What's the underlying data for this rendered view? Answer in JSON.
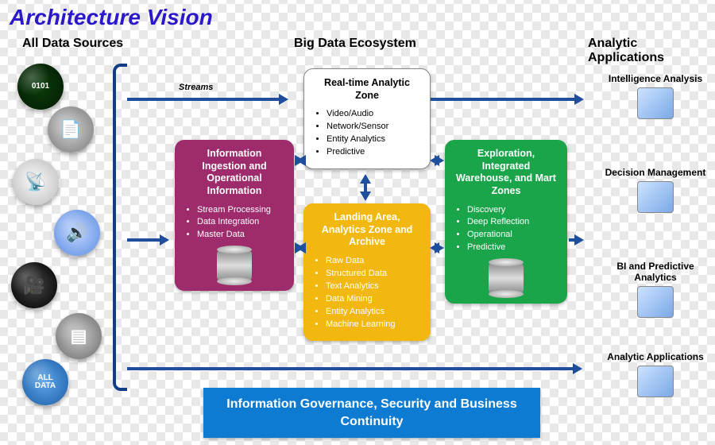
{
  "title": "Architecture Vision",
  "columns": {
    "sources": "All Data Sources",
    "ecosystem": "Big Data Ecosystem",
    "apps": "Analytic Applications"
  },
  "streams_label": "Streams",
  "source_icons": [
    {
      "name": "binary-sphere",
      "c1": "#0b3d0b",
      "c2": "#031a03",
      "glyph": "0101"
    },
    {
      "name": "document-sphere",
      "c1": "#cfcfcf",
      "c2": "#7a7a7a",
      "glyph": "📄"
    },
    {
      "name": "antenna-sphere",
      "c1": "#f7f7f7",
      "c2": "#bcbcbc",
      "glyph": "📡"
    },
    {
      "name": "audio-sphere",
      "c1": "#bcd2ff",
      "c2": "#5c8de0",
      "glyph": "🔊"
    },
    {
      "name": "camera-sphere",
      "c1": "#444444",
      "c2": "#000000",
      "glyph": "🎥"
    },
    {
      "name": "device-sphere",
      "c1": "#c8c8c8",
      "c2": "#6b6b6b",
      "glyph": "▤"
    },
    {
      "name": "alldata-sphere",
      "c1": "#5aa3e8",
      "c2": "#1d5fa8",
      "glyph": "ALL\nDATA"
    }
  ],
  "zones": {
    "ingestion": {
      "title": "Information Ingestion and Operational Information",
      "items": [
        "Stream Processing",
        "Data Integration",
        "Master Data"
      ],
      "bg": "#9e2b6b",
      "has_cyl": true
    },
    "realtime": {
      "title": "Real-time Analytic Zone",
      "items": [
        "Video/Audio",
        "Network/Sensor",
        "Entity Analytics",
        "Predictive"
      ],
      "bg": "#ffffff",
      "has_cyl": false
    },
    "landing": {
      "title": "Landing Area, Analytics Zone and Archive",
      "items": [
        "Raw Data",
        "Structured Data",
        "Text Analytics",
        "Data Mining",
        "Entity Analytics",
        "Machine Learning"
      ],
      "bg": "#f3b80f",
      "has_cyl": false
    },
    "exploration": {
      "title": "Exploration, Integrated Warehouse, and Mart Zones",
      "items": [
        "Discovery",
        "Deep Reflection",
        "Operational",
        "Predictive"
      ],
      "bg": "#1aa54a",
      "has_cyl": true
    }
  },
  "governance": "Information Governance, Security and Business Continuity",
  "apps": [
    {
      "name": "intelligence-analysis",
      "label": "Intelligence Analysis"
    },
    {
      "name": "decision-management",
      "label": "Decision Management"
    },
    {
      "name": "bi-predictive-analytics",
      "label": "BI and Predictive Analytics"
    },
    {
      "name": "analytic-applications",
      "label": "Analytic Applications"
    }
  ],
  "colors": {
    "title": "#2a18c9",
    "arrow": "#1e4e9c",
    "gov_bg": "#0d7bd1"
  }
}
